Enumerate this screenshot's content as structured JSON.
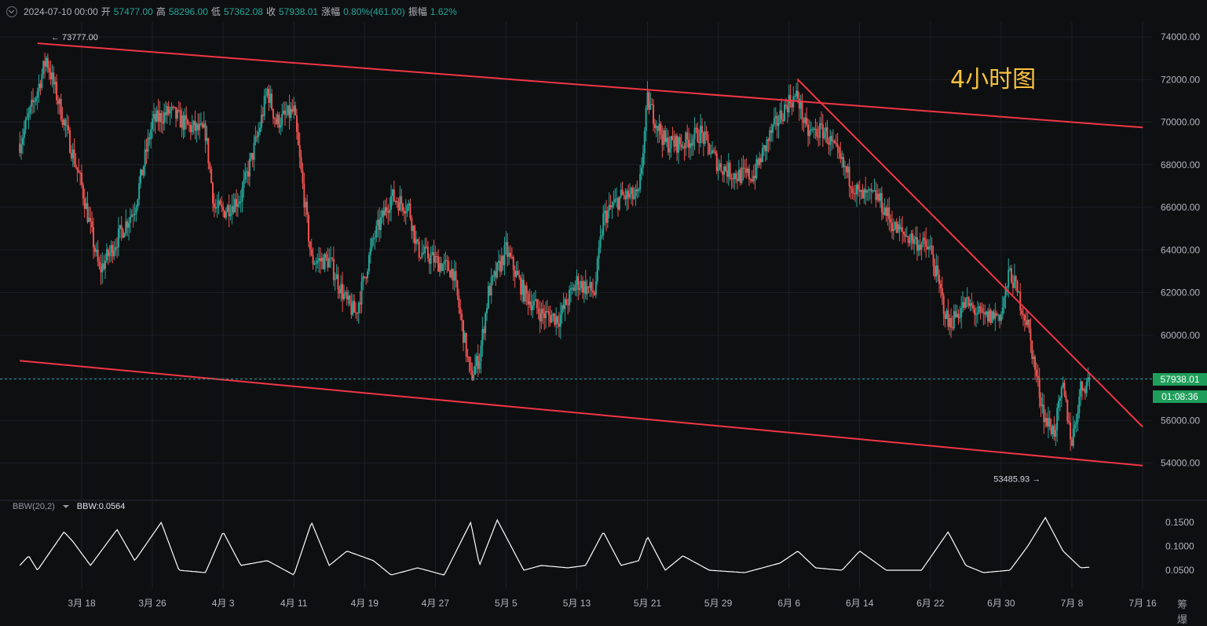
{
  "header": {
    "date": "2024-07-10 00:00",
    "open_label": "开",
    "open": "57477.00",
    "high_label": "高",
    "high": "58296.00",
    "low_label": "低",
    "low": "57362.08",
    "close_label": "收",
    "close": "57938.01",
    "change_label": "涨幅",
    "change": "0.80%(461.00)",
    "amplitude_label": "振幅",
    "amplitude": "1.62%"
  },
  "annotation": "4小时图",
  "current_price_tag": "57938.01",
  "countdown_tag": "01:08:36",
  "indicator": {
    "name": "BBW(20,2)",
    "value_text": "BBW:0.0564"
  },
  "corner_label": "筹 爆",
  "colors": {
    "up": "#26a69a",
    "down": "#ef5350",
    "trendline": "#f23645",
    "annotation": "#f7c23c",
    "bbw_line": "#ffffff",
    "price_tag": "#1e9e5a"
  },
  "chart_data": [
    {
      "type": "candlestick",
      "timeframe": "4h",
      "y_ticks": [
        "74000.00",
        "72000.00",
        "70000.00",
        "68000.00",
        "66000.00",
        "64000.00",
        "62000.00",
        "60000.00",
        "58000.00",
        "56000.00",
        "54000.00"
      ],
      "ylim": [
        53000,
        74800
      ],
      "x_ticks": [
        "3月 18",
        "3月 26",
        "4月 3",
        "4月 11",
        "4月 19",
        "4月 27",
        "5月 5",
        "5月 13",
        "5月 21",
        "5月 29",
        "6月 6",
        "6月 14",
        "6月 22",
        "6月 30",
        "7月 8",
        "7月 16"
      ],
      "last_price": 57938.01,
      "extremes": [
        {
          "label": "73777.00",
          "value": 73777.0,
          "date": "3月 14"
        },
        {
          "label": "53485.93",
          "value": 53485.93,
          "date": "7月 5"
        }
      ],
      "approx_close_path": [
        [
          "3月 11",
          69000
        ],
        [
          "3月 13",
          71500
        ],
        [
          "3月 14",
          73000
        ],
        [
          "3月 16",
          70000
        ],
        [
          "3月 18",
          67000
        ],
        [
          "3月 20",
          63000
        ],
        [
          "3月 22",
          64500
        ],
        [
          "3月 24",
          66000
        ],
        [
          "3月 26",
          70000
        ],
        [
          "3月 28",
          70500
        ],
        [
          "3月 30",
          69800
        ],
        [
          "4月 1",
          69500
        ],
        [
          "4月 2",
          66000
        ],
        [
          "4月 3",
          65800
        ],
        [
          "4月 5",
          66500
        ],
        [
          "4月 7",
          69500
        ],
        [
          "4月 8",
          71500
        ],
        [
          "4月 9",
          70000
        ],
        [
          "4月 11",
          70500
        ],
        [
          "4月 12",
          67000
        ],
        [
          "4月 13",
          63500
        ],
        [
          "4月 15",
          63500
        ],
        [
          "4月 17",
          61500
        ],
        [
          "4月 18",
          61000
        ],
        [
          "4月 20",
          64500
        ],
        [
          "4月 22",
          66500
        ],
        [
          "4月 24",
          66000
        ],
        [
          "4月 25",
          64000
        ],
        [
          "4月 27",
          63500
        ],
        [
          "4月 29",
          63000
        ],
        [
          "5月 1",
          58000
        ],
        [
          "5月 2",
          59000
        ],
        [
          "5月 3",
          62000
        ],
        [
          "5月 5",
          64000
        ],
        [
          "5月 7",
          62000
        ],
        [
          "5月 9",
          61000
        ],
        [
          "5月 11",
          60800
        ],
        [
          "5月 13",
          62500
        ],
        [
          "5月 15",
          62000
        ],
        [
          "5月 16",
          65500
        ],
        [
          "5月 18",
          66500
        ],
        [
          "5月 20",
          66500
        ],
        [
          "5月 21",
          71000
        ],
        [
          "5月 23",
          69000
        ],
        [
          "5月 25",
          69000
        ],
        [
          "5月 27",
          69500
        ],
        [
          "5月 29",
          68000
        ],
        [
          "5月 31",
          67500
        ],
        [
          "6月 2",
          67500
        ],
        [
          "6月 4",
          69500
        ],
        [
          "6月 6",
          71000
        ],
        [
          "6月 7",
          71200
        ],
        [
          "6月 8",
          69500
        ],
        [
          "6月 10",
          69600
        ],
        [
          "6月 12",
          68000
        ],
        [
          "6月 14",
          66500
        ],
        [
          "6月 16",
          66500
        ],
        [
          "6月 18",
          65000
        ],
        [
          "6月 20",
          64500
        ],
        [
          "6月 22",
          64000
        ],
        [
          "6月 24",
          60500
        ],
        [
          "6月 26",
          61500
        ],
        [
          "6月 28",
          60800
        ],
        [
          "6月 30",
          61000
        ],
        [
          "7月 1",
          63000
        ],
        [
          "7月 3",
          60500
        ],
        [
          "7月 4",
          58000
        ],
        [
          "7月 5",
          56000
        ],
        [
          "7月 6",
          55500
        ],
        [
          "7月 7",
          57500
        ],
        [
          "7月 8",
          55000
        ],
        [
          "7月 9",
          57500
        ],
        [
          "7月 10",
          57938
        ]
      ],
      "trendlines": [
        {
          "name": "upper",
          "from": [
            "3月 13",
            73700
          ],
          "to": [
            "7月 16",
            69750
          ]
        },
        {
          "name": "lower",
          "from": [
            "3月 11",
            58800
          ],
          "to": [
            "7月 16",
            53880
          ]
        },
        {
          "name": "descending",
          "from": [
            "6月 7",
            72000
          ],
          "to": [
            "7月 16",
            55700
          ]
        }
      ]
    },
    {
      "type": "line",
      "name": "BBW(20,2)",
      "y_ticks": [
        "0.1500",
        "0.1000",
        "0.0500"
      ],
      "last_value": 0.0564,
      "approx_path": [
        [
          "3月 11",
          0.06
        ],
        [
          "3月 12",
          0.08
        ],
        [
          "3月 13",
          0.05
        ],
        [
          "3月 16",
          0.13
        ],
        [
          "3月 17",
          0.11
        ],
        [
          "3月 19",
          0.06
        ],
        [
          "3月 22",
          0.135
        ],
        [
          "3月 24",
          0.07
        ],
        [
          "3月 27",
          0.15
        ],
        [
          "3月 29",
          0.05
        ],
        [
          "4月 1",
          0.045
        ],
        [
          "4月 3",
          0.13
        ],
        [
          "4月 5",
          0.06
        ],
        [
          "4月 8",
          0.07
        ],
        [
          "4月 11",
          0.04
        ],
        [
          "4月 13",
          0.15
        ],
        [
          "4月 15",
          0.06
        ],
        [
          "4月 17",
          0.09
        ],
        [
          "4月 20",
          0.07
        ],
        [
          "4月 22",
          0.04
        ],
        [
          "4月 25",
          0.055
        ],
        [
          "4月 28",
          0.04
        ],
        [
          "5月 1",
          0.15
        ],
        [
          "5月 2",
          0.06
        ],
        [
          "5月 4",
          0.155
        ],
        [
          "5月 7",
          0.05
        ],
        [
          "5月 9",
          0.06
        ],
        [
          "5月 12",
          0.055
        ],
        [
          "5月 14",
          0.06
        ],
        [
          "5月 16",
          0.13
        ],
        [
          "5月 18",
          0.06
        ],
        [
          "5月 20",
          0.07
        ],
        [
          "5月 21",
          0.12
        ],
        [
          "5月 23",
          0.05
        ],
        [
          "5月 25",
          0.08
        ],
        [
          "5月 28",
          0.05
        ],
        [
          "6月 1",
          0.045
        ],
        [
          "6月 5",
          0.065
        ],
        [
          "6月 7",
          0.09
        ],
        [
          "6月 9",
          0.055
        ],
        [
          "6月 12",
          0.05
        ],
        [
          "6月 14",
          0.09
        ],
        [
          "6月 17",
          0.05
        ],
        [
          "6月 21",
          0.05
        ],
        [
          "6月 24",
          0.13
        ],
        [
          "6月 26",
          0.06
        ],
        [
          "6月 28",
          0.045
        ],
        [
          "7月 1",
          0.05
        ],
        [
          "7月 3",
          0.1
        ],
        [
          "7月 5",
          0.16
        ],
        [
          "7月 7",
          0.09
        ],
        [
          "7月 9",
          0.055
        ],
        [
          "7月 10",
          0.0564
        ]
      ]
    }
  ]
}
